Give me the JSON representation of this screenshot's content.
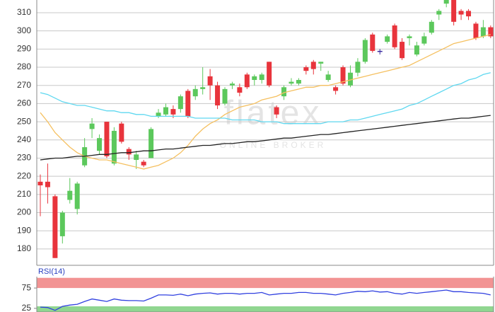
{
  "chart_data": [
    {
      "type": "candlestick",
      "watermark": "flatex",
      "watermark_sub": "ONLINE BROKER",
      "ylim": [
        171,
        317
      ],
      "yticks": [
        180,
        190,
        200,
        210,
        220,
        230,
        240,
        250,
        260,
        270,
        280,
        290,
        300,
        310
      ],
      "grid": true,
      "up_color": "#5cc85c",
      "down_color": "#e8343c",
      "flat_color": "#3a2aa0",
      "open": [
        217,
        217,
        209,
        187,
        207,
        202,
        226,
        246,
        234,
        250,
        227,
        249,
        235,
        229,
        228,
        230,
        253,
        254,
        257,
        257,
        267,
        264,
        268,
        275,
        270,
        260,
        270,
        269,
        276,
        273,
        273,
        283,
        258,
        264,
        271,
        271,
        280,
        283,
        282,
        273,
        269,
        280,
        270,
        277,
        283,
        298,
        289,
        294,
        303,
        294,
        296,
        287,
        293,
        299,
        309,
        315,
        317,
        311,
        311,
        304,
        297,
        302
      ],
      "high": [
        221,
        227,
        210,
        201,
        219,
        217,
        241,
        252,
        243,
        250,
        247,
        250,
        236,
        234,
        229,
        247,
        257,
        260,
        259,
        265,
        268,
        270,
        280,
        279,
        272,
        269,
        272,
        271,
        277,
        276,
        277,
        283,
        259,
        270,
        274,
        274,
        281,
        284,
        283,
        278,
        270,
        281,
        281,
        285,
        296,
        299,
        290,
        298,
        304,
        296,
        298,
        294,
        299,
        306,
        312,
        317,
        317,
        312,
        312,
        305,
        306,
        303
      ],
      "low": [
        198,
        205,
        175,
        183,
        205,
        199,
        225,
        241,
        232,
        230,
        226,
        238,
        229,
        224,
        225,
        230,
        252,
        253,
        252,
        255,
        252,
        262,
        265,
        262,
        257,
        259,
        268,
        264,
        268,
        270,
        271,
        269,
        252,
        262,
        270,
        270,
        276,
        276,
        278,
        272,
        265,
        270,
        269,
        275,
        282,
        288,
        287,
        293,
        290,
        284,
        292,
        286,
        292,
        298,
        306,
        313,
        303,
        306,
        306,
        295,
        296,
        296
      ],
      "close": [
        215,
        214,
        175,
        200,
        212,
        216,
        236,
        249,
        241,
        231,
        245,
        239,
        232,
        232,
        226,
        246,
        255,
        258,
        254,
        264,
        253,
        268,
        269,
        270,
        259,
        268,
        271,
        266,
        269,
        275,
        276,
        270,
        254,
        269,
        272,
        273,
        278,
        279,
        283,
        276,
        267,
        271,
        277,
        283,
        295,
        289,
        289,
        297,
        291,
        285,
        297,
        292,
        297,
        305,
        311,
        317,
        305,
        309,
        308,
        296,
        302,
        297
      ],
      "series": [
        {
          "color": "#f5c060",
          "values": [
            255,
            250,
            244,
            240,
            236,
            233,
            231,
            230,
            229,
            229,
            228,
            227,
            226,
            225,
            224,
            225,
            226,
            228,
            230,
            233,
            237,
            242,
            246,
            249,
            251,
            254,
            256,
            258,
            259,
            260,
            262,
            263,
            264,
            266,
            267,
            268,
            269,
            269,
            270,
            270,
            271,
            272,
            273,
            274,
            275,
            276,
            277,
            278,
            279,
            280,
            281,
            283,
            285,
            287,
            289,
            291,
            293,
            294,
            295,
            296,
            297,
            298
          ]
        },
        {
          "color": "#5fd8f0",
          "values": [
            266,
            265,
            263,
            261,
            260,
            259,
            259,
            258,
            257,
            256,
            256,
            255,
            255,
            254,
            254,
            253,
            253,
            253,
            253,
            253,
            253,
            252,
            252,
            252,
            252,
            252,
            251,
            251,
            251,
            251,
            250,
            250,
            250,
            249,
            249,
            249,
            249,
            249,
            249,
            250,
            250,
            250,
            251,
            251,
            252,
            253,
            254,
            255,
            256,
            257,
            259,
            260,
            262,
            264,
            266,
            268,
            270,
            271,
            273,
            274,
            276,
            277
          ]
        },
        {
          "color": "#222222",
          "values": [
            229,
            229.5,
            230,
            230,
            230.5,
            231,
            231,
            231.5,
            232,
            232,
            232.5,
            233,
            233,
            233.5,
            234,
            234,
            234.5,
            235,
            235,
            235.5,
            236,
            236.5,
            237,
            237,
            237.5,
            238,
            238,
            238.5,
            239,
            239,
            239.5,
            240,
            240.5,
            241,
            241,
            241.5,
            242,
            242.5,
            243,
            243,
            243.5,
            244,
            244.5,
            245,
            245.5,
            246,
            246.5,
            247,
            247.5,
            248,
            248.5,
            249,
            249.5,
            250,
            250.5,
            251,
            251.5,
            252,
            252,
            252.5,
            253,
            253.5
          ]
        }
      ]
    },
    {
      "type": "line",
      "title": "RSI(14)",
      "ylim": [
        16,
        103
      ],
      "yticks": [
        75,
        25
      ],
      "zones": [
        {
          "from": 75,
          "to": 100,
          "color": "#f08080"
        },
        {
          "from": 16,
          "to": 30,
          "color": "#7ccf7c"
        }
      ],
      "series": [
        {
          "color": "#3040e0",
          "values": [
            28,
            27,
            20,
            30,
            33,
            35,
            42,
            48,
            45,
            42,
            48,
            45,
            44,
            44,
            43,
            50,
            58,
            58,
            57,
            60,
            56,
            60,
            62,
            63,
            60,
            62,
            62,
            60,
            62,
            62,
            64,
            58,
            60,
            62,
            62,
            64,
            64,
            62,
            62,
            60,
            58,
            62,
            64,
            67,
            66,
            68,
            65,
            66,
            62,
            60,
            64,
            62,
            64,
            66,
            68,
            70,
            66,
            66,
            64,
            63,
            62,
            58
          ]
        }
      ]
    }
  ]
}
